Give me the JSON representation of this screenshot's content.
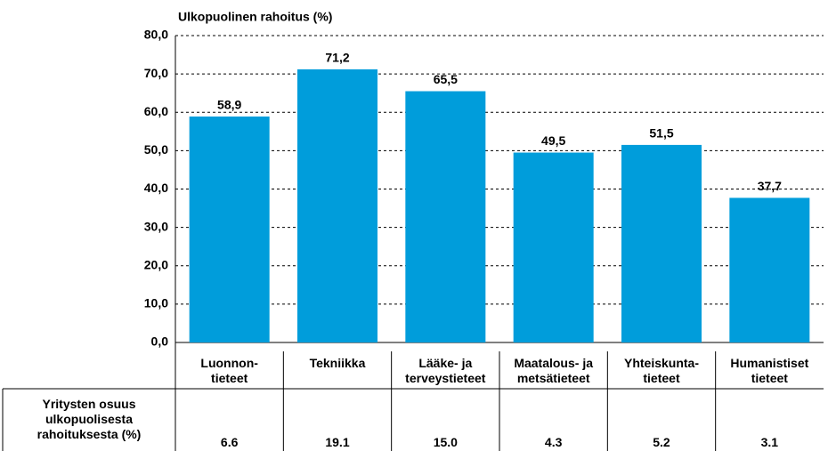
{
  "chart_data": {
    "type": "bar",
    "y_axis_title": "Ulkopuolinen rahoitus (%)",
    "categories": [
      "Luonnon-\ntieteet",
      "Tekniikka",
      "Lääke- ja\nterveystieteet",
      "Maatalous- ja\nmetsätieteet",
      "Yhteiskunta-\ntieteet",
      "Humanistiset\ntieteet"
    ],
    "values": [
      58.9,
      71.2,
      65.5,
      49.5,
      51.5,
      37.7
    ],
    "value_labels": [
      "58,9",
      "71,2",
      "65,5",
      "49,5",
      "51,5",
      "37,7"
    ],
    "color": "#009ddb",
    "ylim": [
      0,
      80
    ],
    "yticks": [
      {
        "value": 0,
        "label": "0,0"
      },
      {
        "value": 10,
        "label": "10,0"
      },
      {
        "value": 20,
        "label": "20,0"
      },
      {
        "value": 30,
        "label": "30,0"
      },
      {
        "value": 40,
        "label": "40,0"
      },
      {
        "value": 50,
        "label": "50,0"
      },
      {
        "value": 60,
        "label": "60,0"
      },
      {
        "value": 70,
        "label": "70,0"
      },
      {
        "value": 80,
        "label": "80,0"
      }
    ],
    "grid": true,
    "table": {
      "row_label": "Yritysten osuus\nulkopuolisesta\nrahoituksesta (%)",
      "values": [
        "6.6",
        "19.1",
        "15.0",
        "4.3",
        "5.2",
        "3.1"
      ]
    }
  }
}
